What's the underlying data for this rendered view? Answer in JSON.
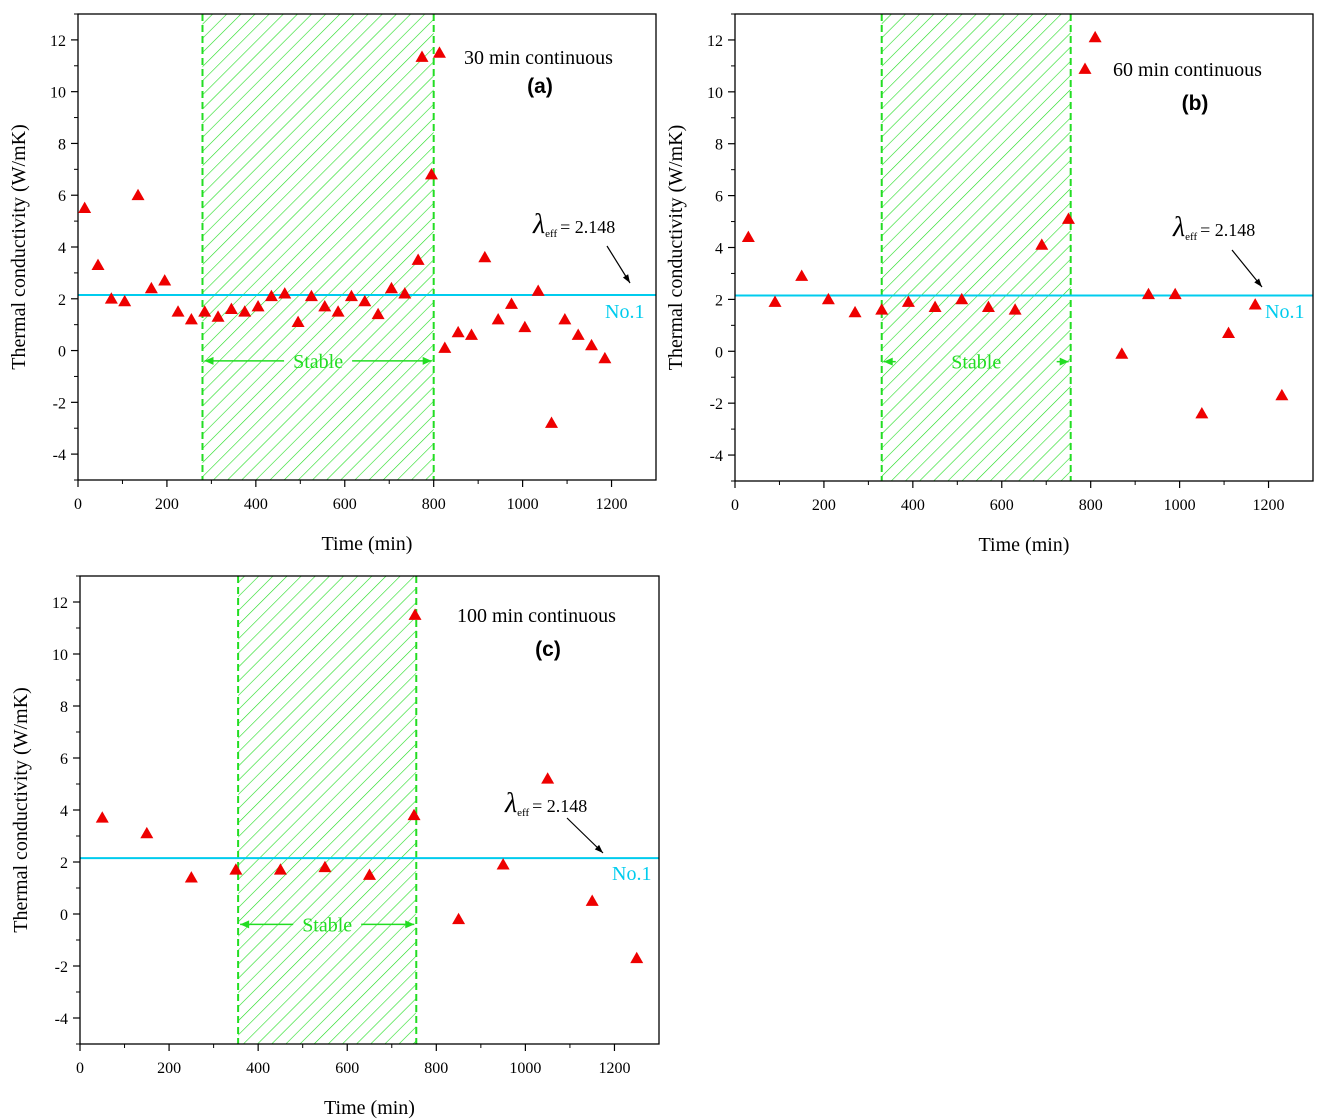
{
  "chart_data": [
    {
      "type": "scatter",
      "panel": "(a)",
      "series": [
        {
          "name": "30 min continuous",
          "x": [
            15,
            45,
            75,
            105,
            135,
            165,
            195,
            225,
            255,
            285,
            315,
            345,
            375,
            405,
            435,
            465,
            495,
            525,
            555,
            585,
            615,
            645,
            675,
            705,
            735,
            765,
            795,
            825,
            855,
            885,
            915,
            945,
            975,
            1005,
            1035,
            1065,
            1095,
            1125,
            1155,
            1185
          ],
          "y": [
            5.5,
            3.3,
            2.0,
            1.9,
            6.0,
            2.4,
            2.7,
            1.5,
            1.2,
            1.5,
            1.3,
            1.6,
            1.5,
            1.7,
            2.1,
            2.2,
            1.1,
            2.1,
            1.7,
            1.5,
            2.1,
            1.9,
            1.4,
            2.4,
            2.2,
            3.5,
            6.8,
            0.1,
            0.7,
            0.6,
            3.6,
            1.2,
            1.8,
            0.9,
            2.3,
            -2.8,
            1.2,
            0.6,
            0.2,
            -0.3
          ]
        }
      ],
      "legend_extra_x": 813,
      "legend_extra_y": 11.5,
      "stable_range": [
        280,
        800
      ],
      "stable_label": "Stable",
      "ref_line": {
        "value": 2.148,
        "label": "No.1",
        "annotation_symbol": "λ",
        "annotation_sub": "eff",
        "annotation_text": "= 2.148"
      },
      "xlabel": "Time (min)",
      "ylabel": "Thermal conductivity (W/mK)",
      "xlim": [
        0,
        1300
      ],
      "ylim": [
        -5,
        13
      ],
      "xticks": [
        0,
        200,
        400,
        600,
        800,
        1000,
        1200
      ],
      "yticks": [
        -4,
        -2,
        0,
        2,
        4,
        6,
        8,
        10,
        12
      ]
    },
    {
      "type": "scatter",
      "panel": "(b)",
      "series": [
        {
          "name": "60 min continuous",
          "x": [
            30,
            90,
            150,
            210,
            270,
            330,
            390,
            450,
            510,
            570,
            630,
            690,
            750,
            870,
            930,
            990,
            1050,
            1110,
            1170,
            1230
          ],
          "y": [
            4.4,
            1.9,
            2.9,
            2.0,
            1.5,
            1.6,
            1.9,
            1.7,
            2.0,
            1.7,
            1.6,
            4.1,
            5.1,
            -0.1,
            2.2,
            2.2,
            -2.4,
            0.7,
            1.8,
            -1.7
          ]
        }
      ],
      "legend_extra_x": 810,
      "legend_extra_y": 12.1,
      "stable_range": [
        330,
        755
      ],
      "stable_label": "Stable",
      "ref_line": {
        "value": 2.148,
        "label": "No.1",
        "annotation_symbol": "λ",
        "annotation_sub": "eff",
        "annotation_text": "= 2.148"
      },
      "xlabel": "Time (min)",
      "ylabel": "Thermal conductivity (W/mK)",
      "xlim": [
        0,
        1300
      ],
      "ylim": [
        -5,
        13
      ],
      "xticks": [
        0,
        200,
        400,
        600,
        800,
        1000,
        1200
      ],
      "yticks": [
        -4,
        -2,
        0,
        2,
        4,
        6,
        8,
        10,
        12
      ]
    },
    {
      "type": "scatter",
      "panel": "(c)",
      "series": [
        {
          "name": "100 min continuous",
          "x": [
            50,
            150,
            250,
            350,
            450,
            550,
            650,
            750,
            850,
            950,
            1050,
            1150,
            1250
          ],
          "y": [
            3.7,
            3.1,
            1.4,
            1.7,
            1.7,
            1.8,
            1.5,
            3.8,
            -0.2,
            1.9,
            5.2,
            0.5,
            -1.7
          ]
        }
      ],
      "stable_range": [
        355,
        755
      ],
      "stable_label": "Stable",
      "ref_line": {
        "value": 2.148,
        "label": "No.1",
        "annotation_symbol": "λ",
        "annotation_sub": "eff",
        "annotation_text": "= 2.148"
      },
      "xlabel": "Time (min)",
      "ylabel": "Thermal conductivity (W/mK)",
      "xlim": [
        0,
        1300
      ],
      "ylim": [
        -5,
        13
      ],
      "xticks": [
        0,
        200,
        400,
        600,
        800,
        1000,
        1200
      ],
      "yticks": [
        -4,
        -2,
        0,
        2,
        4,
        6,
        8,
        10,
        12
      ]
    }
  ],
  "colors": {
    "marker": "#ee0000",
    "ref_line": "#00ccee",
    "stable": "#22dd22"
  }
}
